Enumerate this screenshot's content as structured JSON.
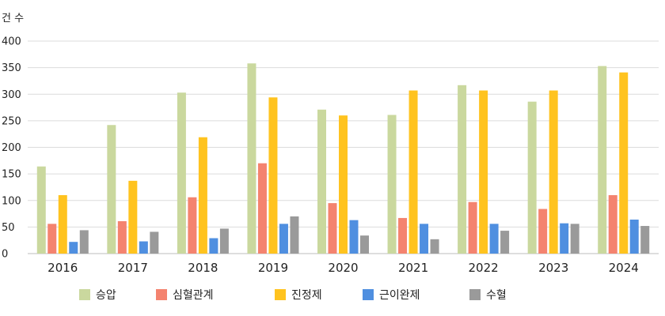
{
  "chart_data": {
    "type": "bar",
    "ylabel": "건 수",
    "categories": [
      "2016",
      "2017",
      "2018",
      "2019",
      "2020",
      "2021",
      "2022",
      "2023",
      "2024"
    ],
    "ylim": [
      0,
      400
    ],
    "yticks": [
      0,
      50,
      100,
      150,
      200,
      250,
      300,
      350,
      400
    ],
    "grid": true,
    "legend_position": "bottom",
    "series": [
      {
        "name": "승압",
        "color": "#cad89e",
        "values": [
          164,
          242,
          303,
          358,
          271,
          261,
          317,
          286,
          353
        ]
      },
      {
        "name": "심혈관계",
        "color": "#f4836f",
        "values": [
          56,
          61,
          106,
          170,
          95,
          67,
          97,
          84,
          110
        ]
      },
      {
        "name": "진정제",
        "color": "#ffc31f",
        "values": [
          110,
          137,
          219,
          294,
          260,
          307,
          307,
          307,
          341
        ]
      },
      {
        "name": "근이완제",
        "color": "#4f8fe0",
        "values": [
          22,
          23,
          29,
          56,
          63,
          56,
          56,
          57,
          64
        ]
      },
      {
        "name": "수혈",
        "color": "#9a9a9a",
        "values": [
          44,
          41,
          47,
          70,
          34,
          27,
          43,
          56,
          52
        ]
      }
    ]
  }
}
